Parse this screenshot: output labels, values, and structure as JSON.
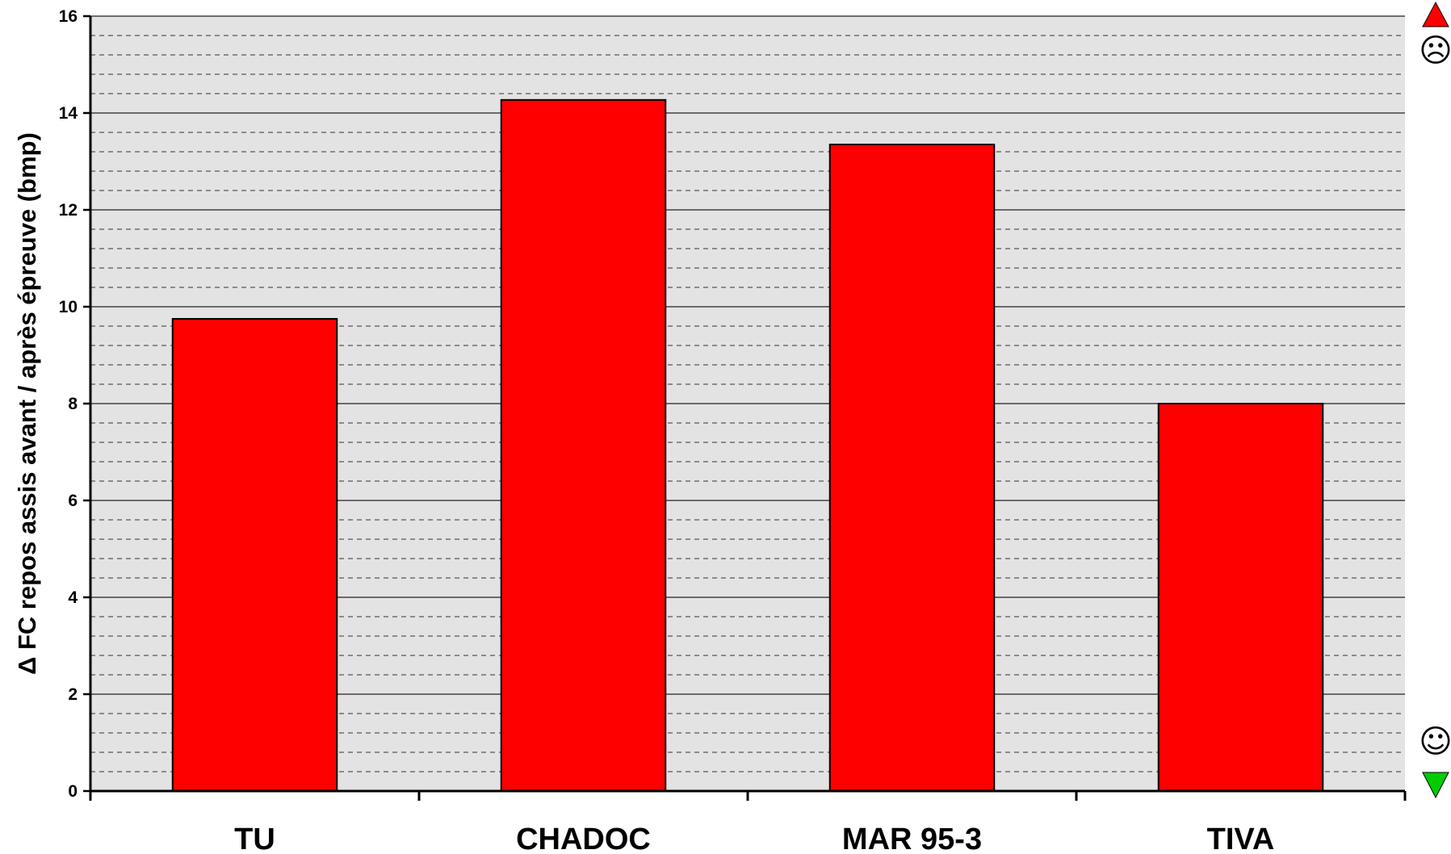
{
  "chart_data": {
    "type": "bar",
    "categories": [
      "TU",
      "CHADOC",
      "MAR 95-3",
      "TIVA"
    ],
    "values": [
      9.75,
      14.27,
      13.35,
      8.0
    ],
    "ylabel": "Δ FC repos assis avant / après épreuve (bmp)",
    "ylim": [
      0,
      16
    ],
    "y_major_step": 2,
    "y_minor_step": 0.4,
    "grid": true,
    "bar_color": "#ff0000",
    "plot_background": "#e3e3e3",
    "indicators": {
      "top": {
        "arrow": "red-up-triangle-icon",
        "arrow_color": "#ff0000",
        "face": "☹"
      },
      "bottom": {
        "arrow": "green-down-triangle-icon",
        "arrow_color": "#00cc00",
        "face": "☺"
      }
    }
  }
}
